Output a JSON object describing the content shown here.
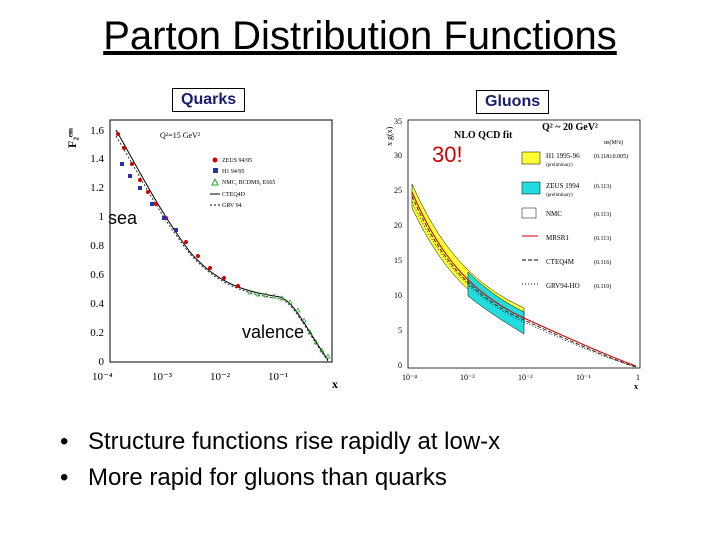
{
  "title": "Parton Distribution Functions",
  "labels": {
    "quarks": "Quarks",
    "gluons": "Gluons",
    "sea": "sea",
    "valence": "valence",
    "thirty": "30!"
  },
  "left_plot": {
    "ylabel": "F₂ᵉᵐ",
    "xlabel": "x",
    "q2": "Q²=15 GeV²",
    "yticks": [
      "0",
      "0.2",
      "0.4",
      "0.6",
      "0.8",
      "1",
      "1.2",
      "1.4",
      "1.6"
    ],
    "xticks": [
      "10⁻⁴",
      "10⁻³",
      "10⁻²",
      "10⁻¹",
      "1"
    ],
    "legend": [
      "ZEUS 94/95",
      "H1 94/95",
      "NMC, BCDMS, E665",
      "CTEQ4D",
      "GRV 94"
    ]
  },
  "right_plot": {
    "ylabel": "x g(x)",
    "xlabel": "x",
    "header": "NLO QCD fit",
    "q2": "Q² ~ 20 GeV²",
    "alphas_header": "αs(M²z)",
    "yticks": [
      "0",
      "5",
      "10",
      "15",
      "20",
      "25",
      "30",
      "35"
    ],
    "xticks": [
      "10⁻⁴",
      "10⁻³",
      "10⁻²",
      "10⁻¹",
      "1"
    ],
    "legend": [
      {
        "name": "H1 1995-96",
        "sub": "(preliminary)",
        "value": "(0.118±0.005)",
        "color": "#ffff33"
      },
      {
        "name": "ZEUS 1994",
        "sub": "(preliminary)",
        "value": "(0.113)",
        "color": "#22dddd"
      },
      {
        "name": "NMC",
        "sub": "",
        "value": "(0.113)",
        "color": "#ffffff"
      },
      {
        "name": "MRSR1",
        "sub": "",
        "value": "(0.113)",
        "color": "#cc0000"
      },
      {
        "name": "CTEQ4M",
        "sub": "",
        "value": "(0.116)",
        "color": "#000000"
      },
      {
        "name": "GRV94-HO",
        "sub": "",
        "value": "(0.110)",
        "color": "#000000"
      }
    ]
  },
  "bullets": [
    "Structure functions rise rapidly at low-x",
    "More rapid for gluons than quarks"
  ],
  "colors": {
    "label_text": "#1a1a6e",
    "annotation_red": "#cc0000",
    "band_yellow": "#ffff33",
    "band_cyan": "#22dddd"
  }
}
